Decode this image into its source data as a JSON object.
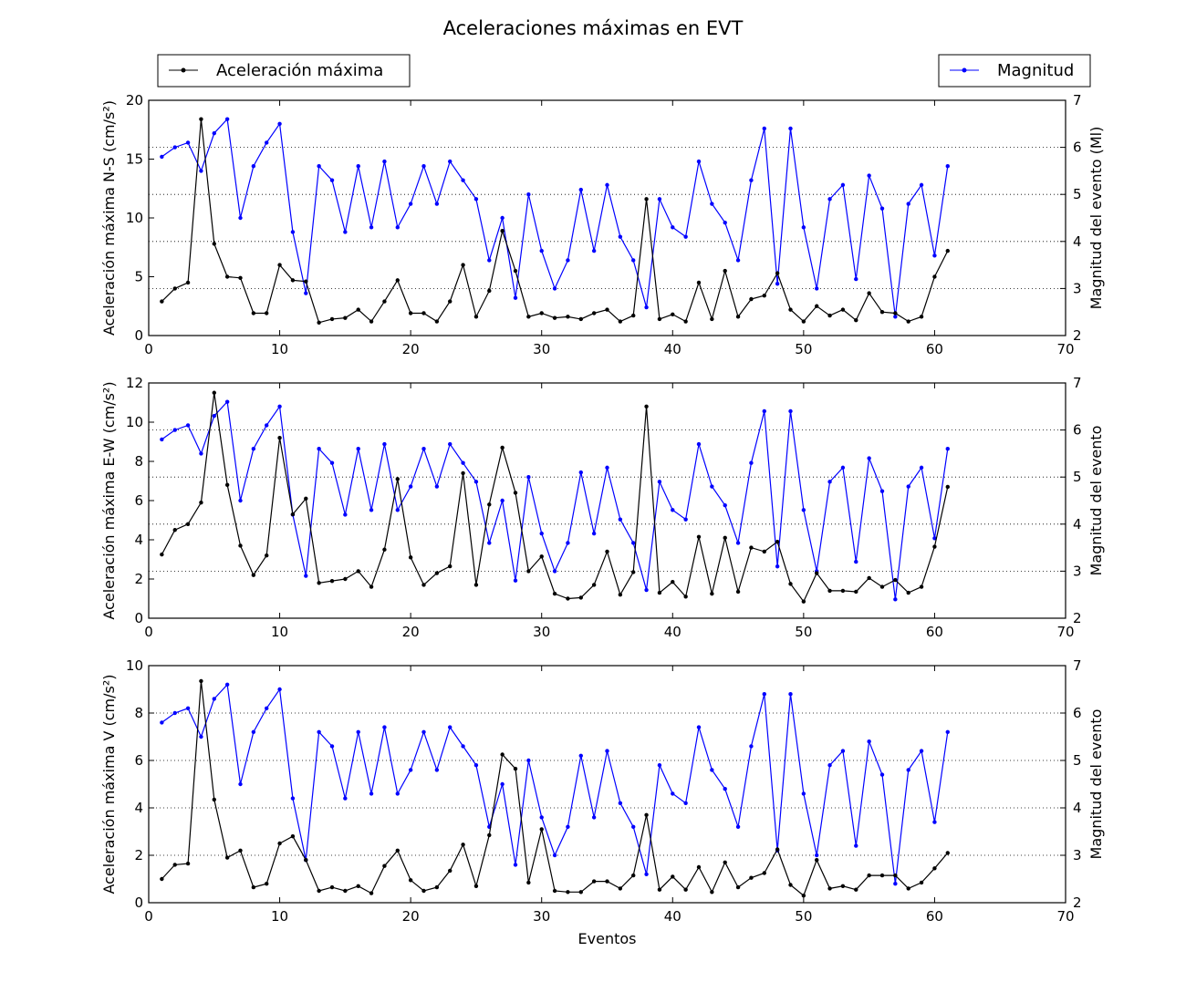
{
  "chart_data": {
    "type": "line",
    "title": "Aceleraciones máximas en EVT",
    "legend": {
      "left": "Aceleración máxima",
      "right": "Magnitud",
      "placement_left": "top-left",
      "placement_right": "top-right"
    },
    "colors": {
      "acceleration": "#000000",
      "magnitude": "#0000ff"
    },
    "xlabel": "Eventos",
    "xlim": [
      0,
      70
    ],
    "xticks": [
      0,
      10,
      20,
      30,
      40,
      50,
      60,
      70
    ],
    "x": [
      1,
      2,
      3,
      4,
      5,
      6,
      7,
      8,
      9,
      10,
      11,
      12,
      13,
      14,
      15,
      16,
      17,
      18,
      19,
      20,
      21,
      22,
      23,
      24,
      25,
      26,
      27,
      28,
      29,
      30,
      31,
      32,
      33,
      34,
      35,
      36,
      37,
      38,
      39,
      40,
      41,
      42,
      43,
      44,
      45,
      46,
      47,
      48,
      49,
      50,
      51,
      52,
      53,
      54,
      55,
      56,
      57,
      58,
      59,
      60,
      61
    ],
    "magnitude": [
      5.8,
      6.0,
      6.1,
      5.5,
      6.3,
      6.6,
      4.5,
      5.6,
      6.1,
      6.5,
      4.2,
      2.9,
      5.6,
      5.3,
      4.2,
      5.6,
      4.3,
      5.7,
      4.3,
      4.8,
      5.6,
      4.8,
      5.7,
      5.3,
      4.9,
      3.6,
      4.5,
      2.8,
      5.0,
      3.8,
      3.0,
      3.6,
      5.1,
      3.8,
      5.2,
      4.1,
      3.6,
      2.6,
      4.9,
      4.3,
      4.1,
      5.7,
      4.8,
      4.4,
      3.6,
      5.3,
      6.4,
      3.1,
      6.4,
      4.3,
      3.0,
      4.9,
      5.2,
      3.2,
      5.4,
      4.7,
      2.4,
      4.8,
      5.2,
      3.7,
      5.6
    ],
    "panels": [
      {
        "name": "N-S",
        "ylabel": "Aceleración máxima N-S (cm/s²)",
        "ylabel_right": "Magnitud del evento (Ml)",
        "ylim": [
          0,
          20
        ],
        "yticks": [
          0,
          5,
          10,
          15,
          20
        ],
        "ylim_right": [
          2,
          7
        ],
        "yticks_right": [
          2,
          3,
          4,
          5,
          6,
          7
        ],
        "values": [
          2.9,
          4.0,
          4.5,
          18.4,
          7.8,
          5.0,
          4.9,
          1.9,
          1.9,
          6.0,
          4.7,
          4.6,
          1.1,
          1.4,
          1.5,
          2.2,
          1.2,
          2.9,
          4.7,
          1.9,
          1.9,
          1.2,
          2.9,
          6.0,
          1.6,
          3.8,
          8.9,
          5.5,
          1.6,
          1.9,
          1.5,
          1.6,
          1.4,
          1.9,
          2.2,
          1.2,
          1.7,
          11.6,
          1.4,
          1.8,
          1.2,
          4.5,
          1.4,
          5.5,
          1.6,
          3.1,
          3.4,
          5.3,
          2.2,
          1.2,
          2.5,
          1.7,
          2.2,
          1.3,
          3.6,
          2.0,
          1.9,
          1.2,
          1.6,
          5.0,
          7.2
        ]
      },
      {
        "name": "E-W",
        "ylabel": "Aceleración máxima E-W (cm/s²)",
        "ylabel_right": "Magnitud del evento",
        "ylim": [
          0,
          12
        ],
        "yticks": [
          0,
          2,
          4,
          6,
          8,
          10,
          12
        ],
        "ylim_right": [
          2,
          7
        ],
        "yticks_right": [
          2,
          3,
          4,
          5,
          6,
          7
        ],
        "values": [
          3.25,
          4.5,
          4.8,
          5.9,
          11.5,
          6.8,
          3.7,
          2.2,
          3.2,
          9.2,
          5.3,
          6.1,
          1.8,
          1.9,
          2.0,
          2.4,
          1.6,
          3.5,
          7.1,
          3.1,
          1.7,
          2.3,
          2.65,
          7.4,
          1.7,
          5.8,
          8.7,
          6.4,
          2.4,
          3.15,
          1.25,
          1.0,
          1.05,
          1.7,
          3.4,
          1.2,
          2.35,
          10.8,
          1.3,
          1.85,
          1.1,
          4.15,
          1.25,
          4.1,
          1.35,
          3.6,
          3.4,
          3.9,
          1.75,
          0.85,
          2.3,
          1.4,
          1.4,
          1.35,
          2.05,
          1.6,
          1.95,
          1.3,
          1.6,
          3.65,
          6.7
        ]
      },
      {
        "name": "V",
        "ylabel": "Aceleración máxima V (cm/s²)",
        "ylabel_right": "Magnitud del evento",
        "ylim": [
          0,
          10
        ],
        "yticks": [
          0,
          2,
          4,
          6,
          8,
          10
        ],
        "ylim_right": [
          2,
          7
        ],
        "yticks_right": [
          2,
          3,
          4,
          5,
          6,
          7
        ],
        "values": [
          1.0,
          1.6,
          1.65,
          9.35,
          4.35,
          1.9,
          2.2,
          0.65,
          0.8,
          2.5,
          2.8,
          1.8,
          0.5,
          0.65,
          0.5,
          0.7,
          0.4,
          1.55,
          2.2,
          0.95,
          0.5,
          0.65,
          1.35,
          2.45,
          0.7,
          2.85,
          6.25,
          5.65,
          0.85,
          3.1,
          0.5,
          0.45,
          0.45,
          0.9,
          0.9,
          0.6,
          1.15,
          3.7,
          0.55,
          1.1,
          0.55,
          1.5,
          0.45,
          1.7,
          0.65,
          1.05,
          1.25,
          2.25,
          0.75,
          0.3,
          1.8,
          0.6,
          0.7,
          0.55,
          1.15,
          1.15,
          1.15,
          0.6,
          0.85,
          1.45,
          2.1
        ]
      }
    ]
  }
}
